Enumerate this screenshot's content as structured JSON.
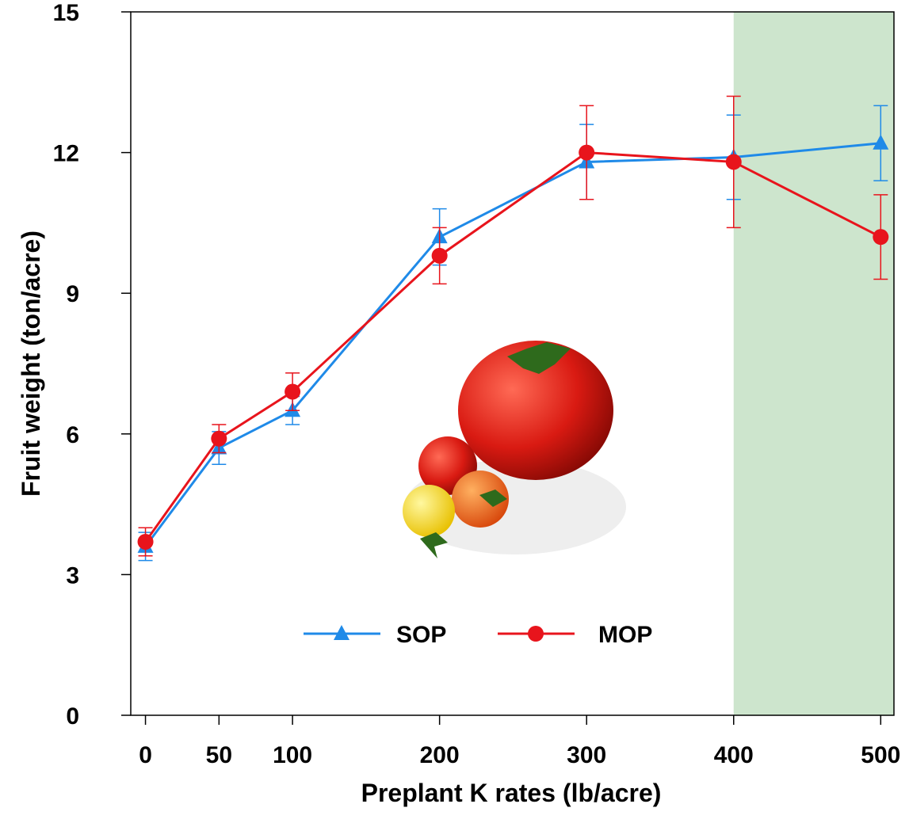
{
  "chart_data": {
    "type": "line",
    "x_label": "Preplant K rates (lb/acre)",
    "y_label": "Fruit weight (ton/acre)",
    "x": [
      0,
      50,
      100,
      200,
      300,
      400,
      500
    ],
    "series": [
      {
        "name": "SOP",
        "color": "#1f8ae8",
        "marker": "triangle",
        "values": [
          3.6,
          5.7,
          6.5,
          10.2,
          11.8,
          11.9,
          12.2
        ],
        "errors": [
          0.3,
          0.35,
          0.3,
          0.6,
          0.8,
          0.9,
          0.8
        ]
      },
      {
        "name": "MOP",
        "color": "#e8141c",
        "marker": "circle",
        "values": [
          3.7,
          5.9,
          6.9,
          9.8,
          12.0,
          11.8,
          10.2
        ],
        "errors": [
          0.3,
          0.3,
          0.4,
          0.6,
          1.0,
          1.4,
          0.9
        ]
      }
    ],
    "xlim": [
      -10,
      509
    ],
    "ylim": [
      0,
      15
    ],
    "xticks": [
      0,
      50,
      100,
      200,
      300,
      400,
      500
    ],
    "yticks": [
      0,
      3,
      6,
      9,
      12,
      15
    ],
    "highlight_xrange": [
      400,
      509
    ],
    "highlight_color": "#cde5cd",
    "legend": "bottom"
  }
}
